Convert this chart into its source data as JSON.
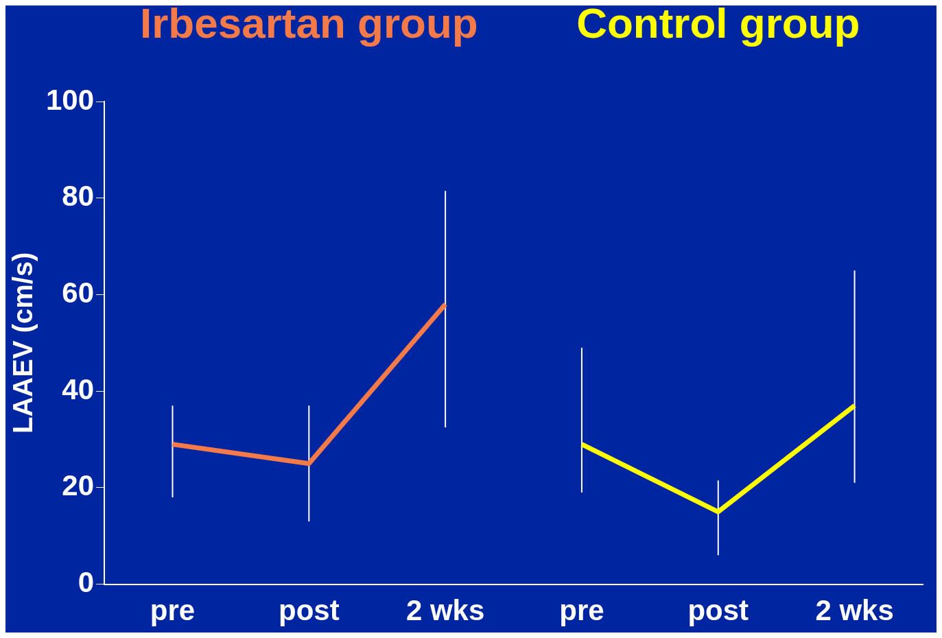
{
  "chart_data": {
    "type": "line",
    "ylabel": "LAAEV (cm/s)",
    "categories": [
      "pre",
      "post",
      "2 wks",
      "pre",
      "post",
      "2 wks"
    ],
    "series": [
      {
        "name": "Irbesartan group",
        "color": "#f57a4a",
        "values": [
          29,
          25,
          58,
          null,
          null,
          null
        ],
        "errors": [
          [
            18,
            37
          ],
          [
            13,
            37
          ],
          [
            32.5,
            81.5
          ],
          null,
          null,
          null
        ]
      },
      {
        "name": "Control group",
        "color": "#ffff00",
        "values": [
          null,
          null,
          null,
          29,
          15,
          37
        ],
        "errors": [
          null,
          null,
          null,
          [
            19,
            49
          ],
          [
            6,
            21.5
          ],
          [
            21,
            65
          ]
        ]
      }
    ],
    "ylim": [
      0,
      100
    ],
    "yticks": [
      0,
      20,
      40,
      60,
      80,
      100
    ],
    "grid": false,
    "legend": "top",
    "marker": "none",
    "line_style": "solid"
  }
}
